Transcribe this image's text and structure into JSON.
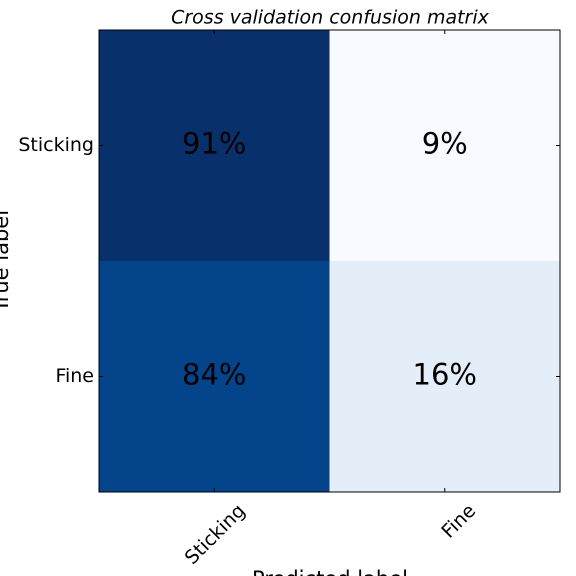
{
  "chart_data": {
    "type": "heatmap",
    "title": "Cross validation confusion matrix",
    "x_label": "Predicted label",
    "y_label": "True label",
    "x_categories": [
      "Sticking",
      "Fine"
    ],
    "y_categories": [
      "Sticking",
      "Fine"
    ],
    "values": [
      [
        91,
        9
      ],
      [
        84,
        16
      ]
    ],
    "value_labels": [
      [
        "91%",
        "9%"
      ],
      [
        "84%",
        "16%"
      ]
    ],
    "colors": [
      [
        "#08306b",
        "#f7fbff"
      ],
      [
        "#04448a",
        "#e4eef9"
      ]
    ]
  }
}
